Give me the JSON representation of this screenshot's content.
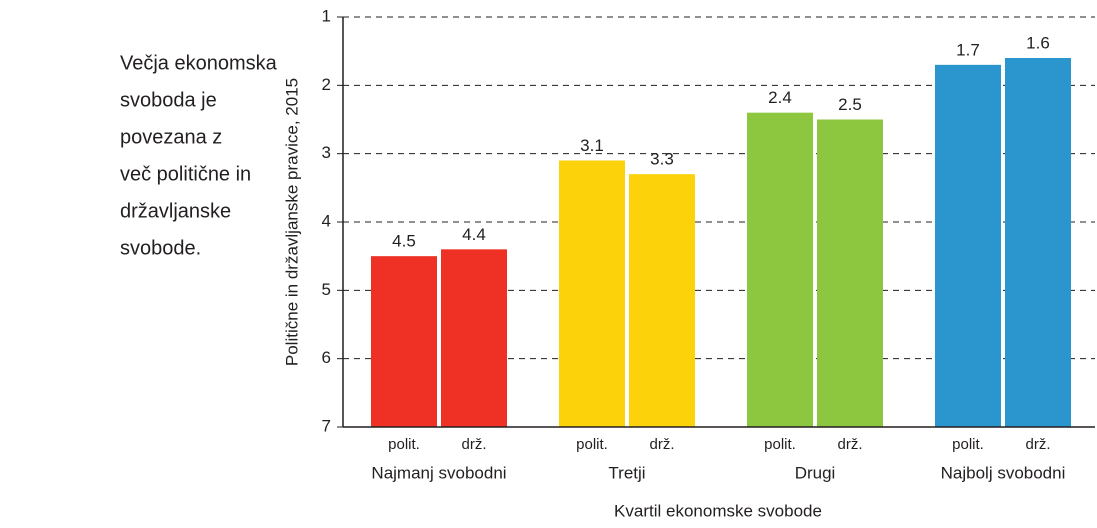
{
  "chart_data": {
    "type": "bar",
    "annotation_lines": [
      "Večja ekonomska",
      "svoboda je",
      "povezana z",
      "več politične in",
      "državljanske",
      "svobode."
    ],
    "y_label": "Politične in državljanske pravice, 2015",
    "x_label": "Kvartil ekonomske svobode",
    "categories": [
      "Najmanj svobodni",
      "Tretji",
      "Drugi",
      "Najbolj svobodni"
    ],
    "colors": [
      "#ee3124",
      "#fcd20a",
      "#8dc63f",
      "#2b96ce"
    ],
    "series": [
      {
        "name": "polit.",
        "values": [
          4.5,
          3.1,
          2.4,
          1.7
        ]
      },
      {
        "name": "drž.",
        "values": [
          4.4,
          3.3,
          2.5,
          1.6
        ]
      }
    ],
    "ylim": [
      7,
      1
    ],
    "yticks": [
      1,
      2,
      3,
      4,
      5,
      6,
      7
    ],
    "grid": true
  }
}
